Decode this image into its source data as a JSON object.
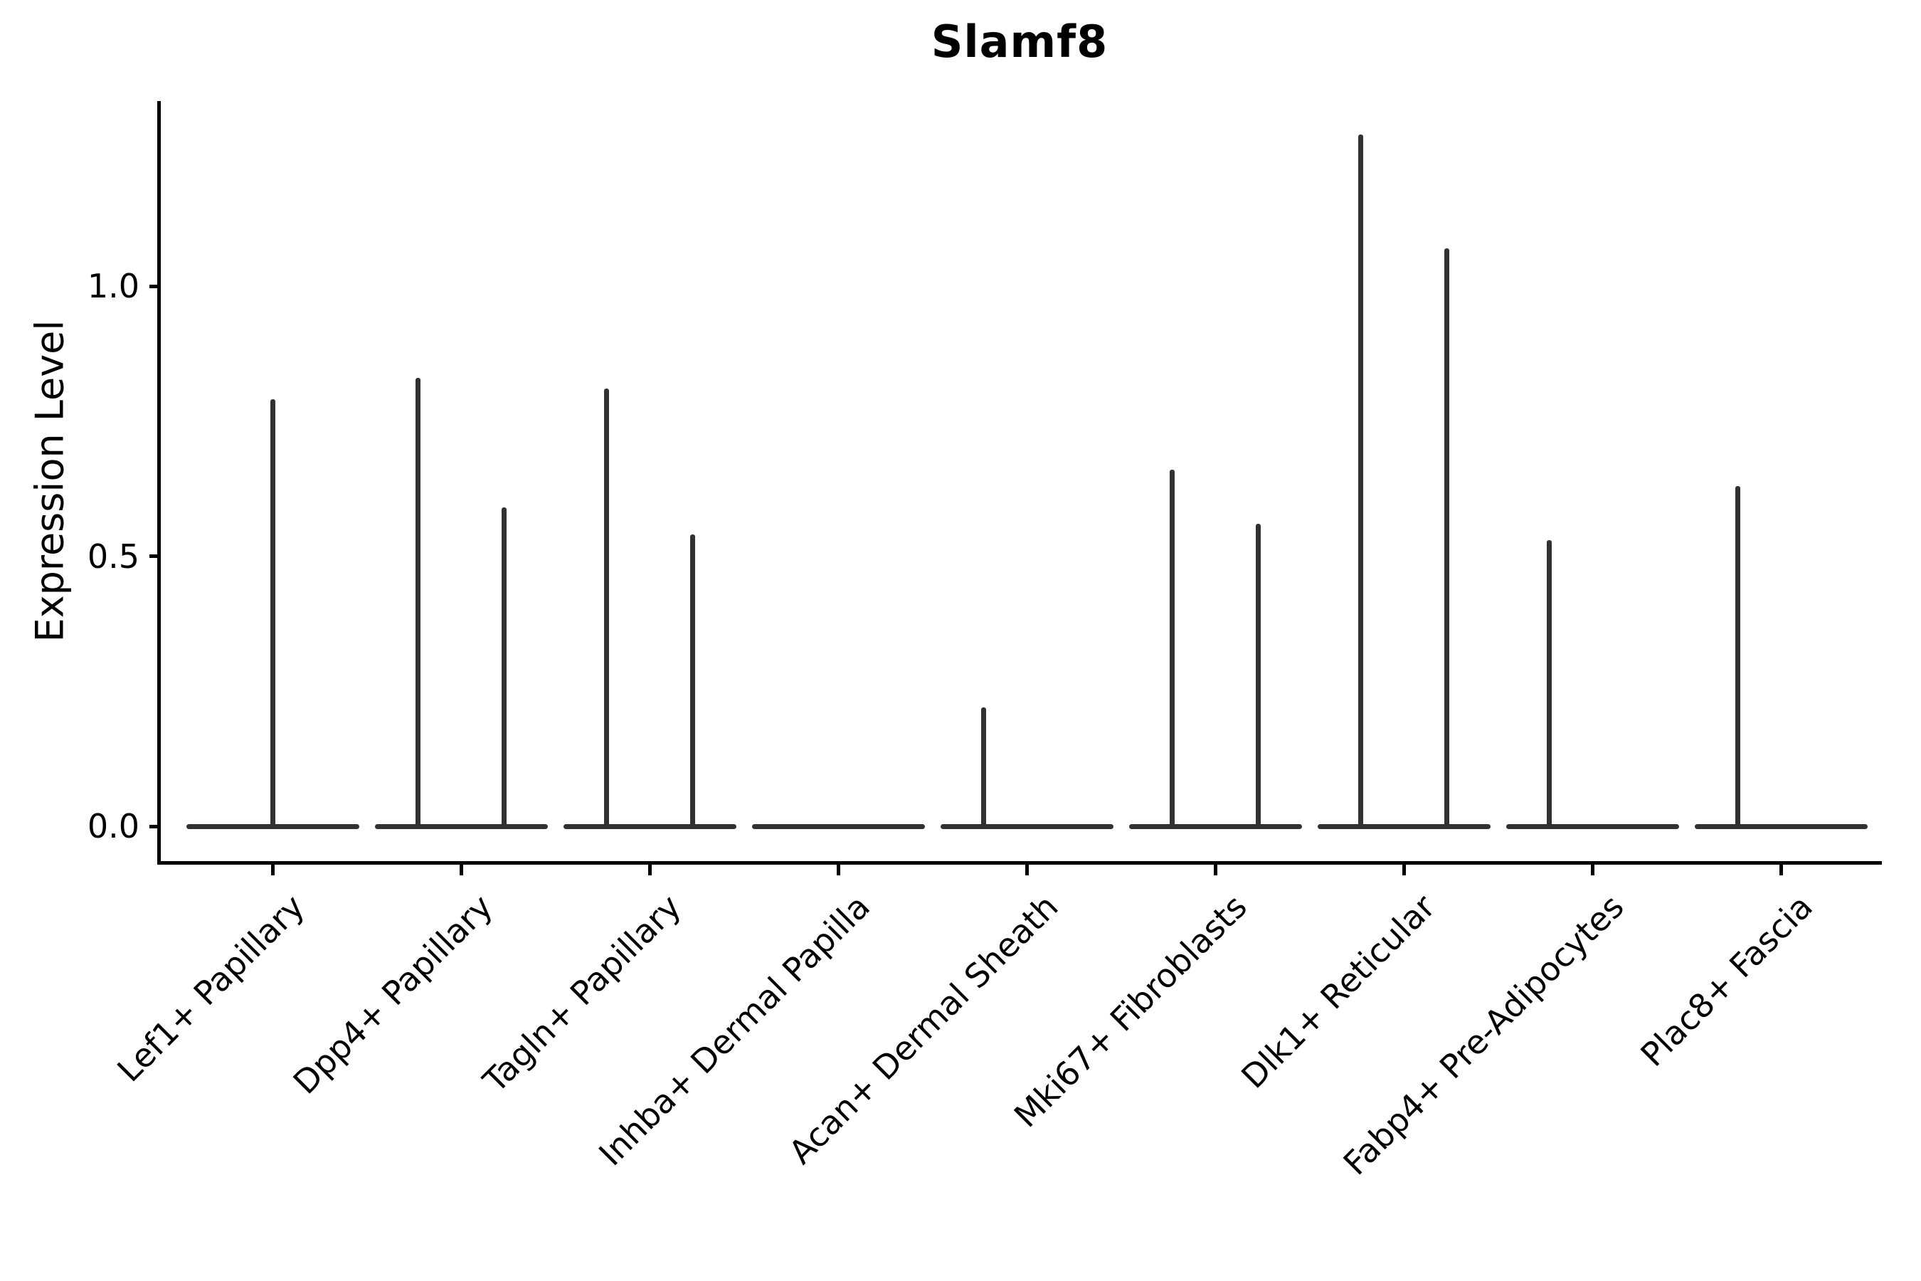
{
  "chart_data": {
    "type": "violin",
    "title": "Slamf8",
    "xlabel": "",
    "ylabel": "Expression Level",
    "yticks": [
      0.0,
      0.5,
      1.0
    ],
    "ylim": [
      -0.06,
      1.34
    ],
    "grid": false,
    "legend": null,
    "categories": [
      "Lef1+ Papillary",
      "Dpp4+ Papillary",
      "Tagln+ Papillary",
      "Inhba+ Dermal Papilla",
      "Acan+ Dermal Sheath",
      "Mki67+ Fibroblasts",
      "Dlk1+ Reticular",
      "Fabp4+ Pre-Adipocytes",
      "Plac8+ Fascia"
    ],
    "series": [
      {
        "category": "Lef1+ Papillary",
        "violins": [
          {
            "position": "center",
            "max_expression": 0.79
          }
        ]
      },
      {
        "category": "Dpp4+ Papillary",
        "violins": [
          {
            "position": "left",
            "max_expression": 0.83
          },
          {
            "position": "right",
            "max_expression": 0.59
          }
        ]
      },
      {
        "category": "Tagln+ Papillary",
        "violins": [
          {
            "position": "left",
            "max_expression": 0.81
          },
          {
            "position": "right",
            "max_expression": 0.54
          }
        ]
      },
      {
        "category": "Inhba+ Dermal Papilla",
        "violins": []
      },
      {
        "category": "Acan+ Dermal Sheath",
        "violins": [
          {
            "position": "left",
            "max_expression": 0.22
          }
        ]
      },
      {
        "category": "Mki67+ Fibroblasts",
        "violins": [
          {
            "position": "left",
            "max_expression": 0.66
          },
          {
            "position": "right",
            "max_expression": 0.56
          }
        ]
      },
      {
        "category": "Dlk1+ Reticular",
        "violins": [
          {
            "position": "left",
            "max_expression": 1.28
          },
          {
            "position": "right",
            "max_expression": 1.07
          }
        ]
      },
      {
        "category": "Fabp4+ Pre-Adipocytes",
        "violins": [
          {
            "position": "left",
            "max_expression": 0.53
          }
        ]
      },
      {
        "category": "Plac8+ Fascia",
        "violins": [
          {
            "position": "left",
            "max_expression": 0.63
          }
        ]
      }
    ],
    "style": {
      "violin_color": "#313131",
      "axis_color": "#000000",
      "text_color": "#000000",
      "background": "#ffffff"
    }
  }
}
